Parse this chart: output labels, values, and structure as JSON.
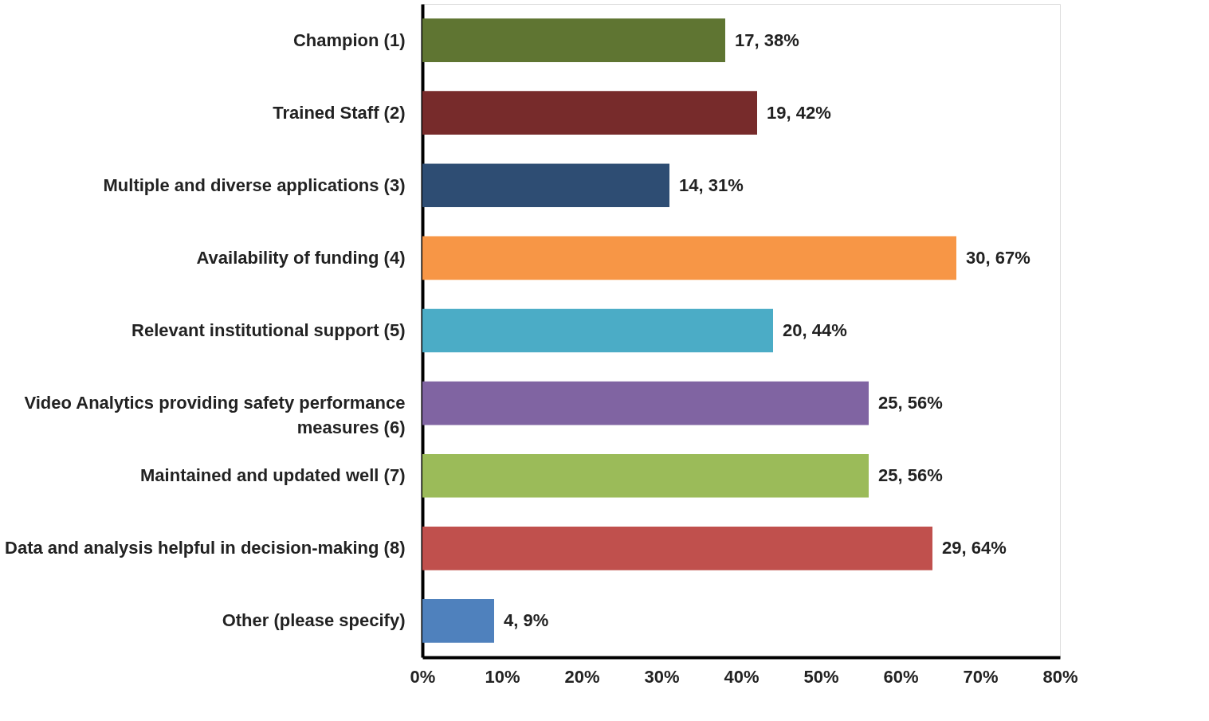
{
  "chart_data": {
    "type": "bar",
    "orientation": "horizontal",
    "categories": [
      "Champion  (1)",
      "Trained Staff (2)",
      "Multiple and diverse applications (3)",
      "Availability of funding  (4)",
      "Relevant institutional support  (5)",
      "Video Analytics providing safety performance measures (6)",
      "Maintained and updated well (7)",
      "Data and analysis helpful in decision-making (8)",
      "Other (please specify)"
    ],
    "values": [
      38,
      42,
      31,
      67,
      44,
      56,
      56,
      64,
      9
    ],
    "colors": [
      "#5f7532",
      "#772b2b",
      "#2e4d73",
      "#f79646",
      "#4bacc6",
      "#8064a2",
      "#9bbb59",
      "#c0504d",
      "#4f81bd"
    ],
    "value_labels": [
      "17, 38%",
      "19, 42%",
      "14, 31%",
      "30, 67%",
      "20, 44%",
      "25, 56%",
      "25, 56%",
      "29, 64%",
      "4, 9%"
    ],
    "xlim": [
      0,
      80
    ],
    "xticks": [
      {
        "value": 0,
        "label": "0%"
      },
      {
        "value": 10,
        "label": "10%"
      },
      {
        "value": 20,
        "label": "20%"
      },
      {
        "value": 30,
        "label": "30%"
      },
      {
        "value": 40,
        "label": "40%"
      },
      {
        "value": 50,
        "label": "50%"
      },
      {
        "value": 60,
        "label": "60%"
      },
      {
        "value": 70,
        "label": "70%"
      },
      {
        "value": 80,
        "label": "80%"
      }
    ],
    "grid": false
  }
}
